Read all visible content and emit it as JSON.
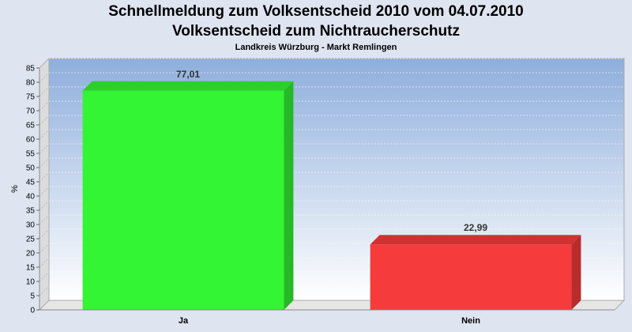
{
  "chart_data": {
    "type": "bar",
    "title": "Schnellmeldung zum Volksentscheid 2010 vom 04.07.2010",
    "subtitle": "Volksentscheid zum Nichtraucherschutz",
    "subsubtitle": "Landkreis Würzburg - Markt Remlingen",
    "ylabel": "%",
    "xlabel": "",
    "ylim": [
      0,
      85
    ],
    "yticks": [
      0,
      5,
      10,
      15,
      20,
      25,
      30,
      35,
      40,
      45,
      50,
      55,
      60,
      65,
      70,
      75,
      80,
      85
    ],
    "categories": [
      "Ja",
      "Nein"
    ],
    "values": [
      77.01,
      22.99
    ],
    "value_labels": [
      "77,01",
      "22,99"
    ],
    "colors": [
      "#33f533",
      "#f53b3b"
    ],
    "grid": true,
    "legend": "none"
  }
}
